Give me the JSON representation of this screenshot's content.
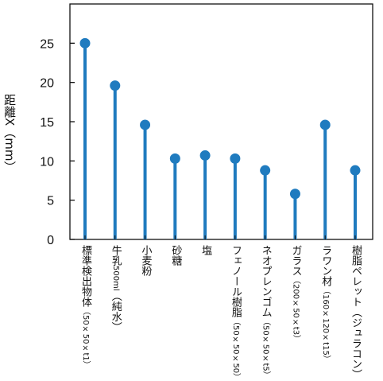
{
  "chart_data": {
    "type": "lollipop",
    "ylabel": "距離X（mm）",
    "ylim": [
      0,
      30
    ],
    "yticks": [
      0,
      5,
      10,
      15,
      20,
      25
    ],
    "grid": false,
    "color": "#1f7bbf",
    "categories": [
      {
        "name": "標準検出物体",
        "sub": "（50×50×t1）",
        "value": 25
      },
      {
        "name": "牛乳",
        "sub": "500ml",
        "name2": "（純水）",
        "value": 19.6
      },
      {
        "name": "小麦粉",
        "sub": "",
        "value": 14.6
      },
      {
        "name": "砂糖",
        "sub": "",
        "value": 10.3
      },
      {
        "name": "塩",
        "sub": "",
        "value": 10.7
      },
      {
        "name": "フェノール樹脂",
        "sub": "（50×50×50）",
        "value": 10.3
      },
      {
        "name": "ネオプレンゴム",
        "sub": "（50×50×t5）",
        "value": 8.8
      },
      {
        "name": "ガラス",
        "sub": "（200×50×t3）",
        "value": 5.8
      },
      {
        "name": "ラワン材",
        "sub": "（160×120×t15）",
        "value": 14.6
      },
      {
        "name": "樹脂ペレット",
        "sub": "",
        "name2": "（ジュラコン）",
        "value": 8.8
      }
    ]
  }
}
